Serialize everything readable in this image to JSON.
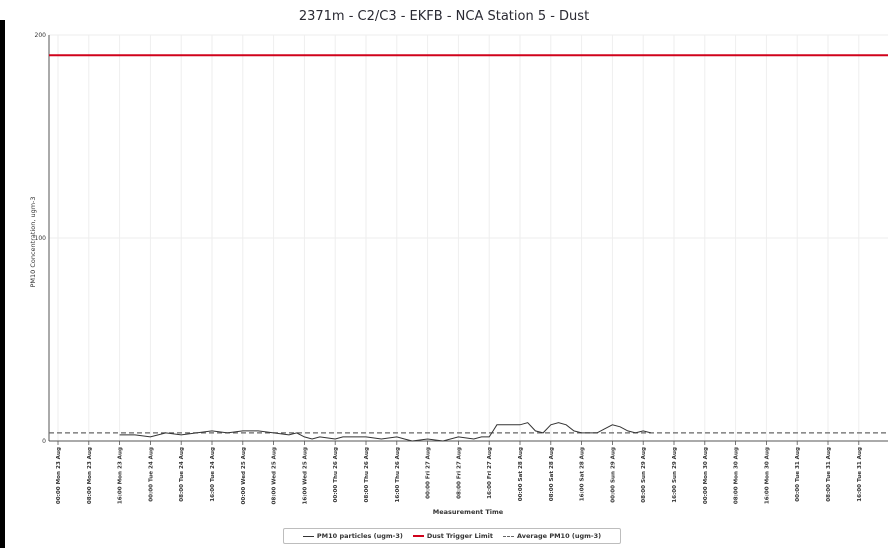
{
  "colors": {
    "pm10": "#333333",
    "trigger": "#d0021b",
    "average": "#666666",
    "grid": "#eeeeee",
    "axis": "#555555"
  },
  "chart_data": {
    "type": "line",
    "title": "2371m - C2/C3 - EKFB - NCA Station 5 - Dust",
    "xlabel": "Measurement Time",
    "ylabel": "PM10 Concentration, ugm-3",
    "ylim": [
      0,
      200
    ],
    "yticks": [
      0,
      100,
      200
    ],
    "grid": true,
    "legend_position": "bottom-center",
    "x_tick_labels": [
      "00:00 Mon 23 Aug",
      "08:00 Mon 23 Aug",
      "16:00 Mon 23 Aug",
      "00:00 Tue 24 Aug",
      "08:00 Tue 24 Aug",
      "16:00 Tue 24 Aug",
      "00:00 Wed 25 Aug",
      "08:00 Wed 25 Aug",
      "16:00 Wed 25 Aug",
      "00:00 Thu 26 Aug",
      "08:00 Thu 26 Aug",
      "16:00 Thu 26 Aug",
      "00:00 Fri 27 Aug",
      "08:00 Fri 27 Aug",
      "16:00 Fri 27 Aug",
      "00:00 Sat 28 Aug",
      "08:00 Sat 28 Aug",
      "16:00 Sat 28 Aug",
      "00:00 Sun 29 Aug",
      "08:00 Sun 29 Aug",
      "16:00 Sun 29 Aug",
      "00:00 Mon 30 Aug",
      "08:00 Mon 30 Aug",
      "16:00 Mon 30 Aug",
      "00:00 Tue 31 Aug",
      "08:00 Tue 31 Aug",
      "16:00 Tue 31 Aug"
    ],
    "x_hours_range": [
      0,
      224
    ],
    "series": [
      {
        "name": "PM10 particles (ugm-3)",
        "style": "solid",
        "points": [
          [
            16,
            3
          ],
          [
            20,
            3
          ],
          [
            24,
            2
          ],
          [
            26,
            3
          ],
          [
            28,
            4
          ],
          [
            32,
            3
          ],
          [
            36,
            4
          ],
          [
            40,
            5
          ],
          [
            44,
            4
          ],
          [
            48,
            5
          ],
          [
            52,
            5
          ],
          [
            56,
            4
          ],
          [
            60,
            3
          ],
          [
            62,
            4
          ],
          [
            64,
            2
          ],
          [
            66,
            1
          ],
          [
            68,
            2
          ],
          [
            72,
            1
          ],
          [
            74,
            2
          ],
          [
            80,
            2
          ],
          [
            84,
            1
          ],
          [
            88,
            2
          ],
          [
            90,
            1
          ],
          [
            92,
            0
          ],
          [
            96,
            1
          ],
          [
            100,
            0
          ],
          [
            104,
            2
          ],
          [
            108,
            1
          ],
          [
            110,
            2
          ],
          [
            112,
            2
          ],
          [
            113,
            5
          ],
          [
            114,
            8
          ],
          [
            118,
            8
          ],
          [
            120,
            8
          ],
          [
            122,
            9
          ],
          [
            124,
            5
          ],
          [
            126,
            4
          ],
          [
            128,
            8
          ],
          [
            130,
            9
          ],
          [
            132,
            8
          ],
          [
            134,
            5
          ],
          [
            136,
            4
          ],
          [
            140,
            4
          ],
          [
            142,
            6
          ],
          [
            144,
            8
          ],
          [
            146,
            7
          ],
          [
            148,
            5
          ],
          [
            150,
            4
          ],
          [
            152,
            5
          ],
          [
            154,
            4
          ]
        ]
      },
      {
        "name": "Dust Trigger Limit",
        "style": "solid",
        "value": 190
      },
      {
        "name": "Average PM10 (ugm-3)",
        "style": "dashed",
        "value": 4
      }
    ]
  }
}
